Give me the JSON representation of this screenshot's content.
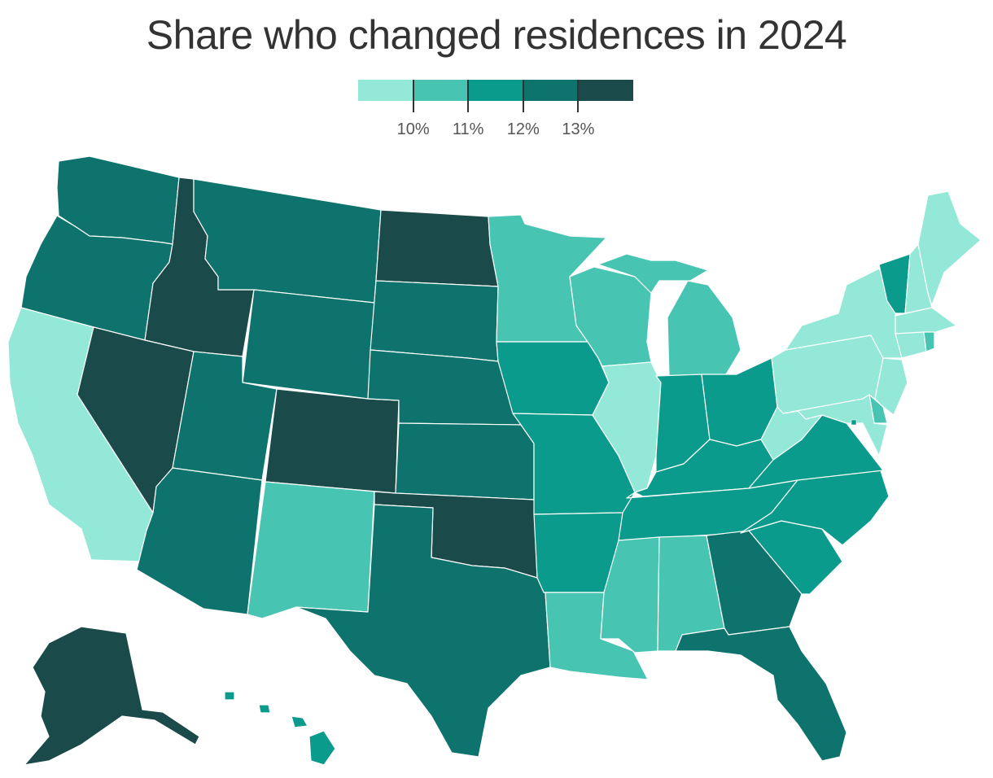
{
  "title": "Share who changed residences in 2024",
  "legend": {
    "bins": [
      {
        "color": "#94e8d8"
      },
      {
        "color": "#48c4b3"
      },
      {
        "color": "#0b9b8c"
      },
      {
        "color": "#0e736d"
      },
      {
        "color": "#1b4a4a"
      }
    ],
    "labels": [
      "10%",
      "11%",
      "12%",
      "13%"
    ]
  },
  "states": [
    {
      "id": "WA",
      "bin": 3
    },
    {
      "id": "OR",
      "bin": 3
    },
    {
      "id": "CA",
      "bin": 0
    },
    {
      "id": "ID",
      "bin": 4
    },
    {
      "id": "NV",
      "bin": 4
    },
    {
      "id": "MT",
      "bin": 3
    },
    {
      "id": "WY",
      "bin": 3
    },
    {
      "id": "UT",
      "bin": 3
    },
    {
      "id": "AZ",
      "bin": 3
    },
    {
      "id": "CO",
      "bin": 4
    },
    {
      "id": "NM",
      "bin": 1
    },
    {
      "id": "ND",
      "bin": 4
    },
    {
      "id": "SD",
      "bin": 3
    },
    {
      "id": "NE",
      "bin": 3
    },
    {
      "id": "KS",
      "bin": 3
    },
    {
      "id": "OK",
      "bin": 4
    },
    {
      "id": "TX",
      "bin": 3
    },
    {
      "id": "MN",
      "bin": 1
    },
    {
      "id": "IA",
      "bin": 2
    },
    {
      "id": "MO",
      "bin": 2
    },
    {
      "id": "AR",
      "bin": 2
    },
    {
      "id": "LA",
      "bin": 1
    },
    {
      "id": "WI",
      "bin": 1
    },
    {
      "id": "IL",
      "bin": 0
    },
    {
      "id": "MI",
      "bin": 1
    },
    {
      "id": "IN",
      "bin": 2
    },
    {
      "id": "OH",
      "bin": 2
    },
    {
      "id": "KY",
      "bin": 2
    },
    {
      "id": "TN",
      "bin": 2
    },
    {
      "id": "MS",
      "bin": 1
    },
    {
      "id": "AL",
      "bin": 1
    },
    {
      "id": "GA",
      "bin": 3
    },
    {
      "id": "FL",
      "bin": 3
    },
    {
      "id": "SC",
      "bin": 2
    },
    {
      "id": "NC",
      "bin": 2
    },
    {
      "id": "VA",
      "bin": 2
    },
    {
      "id": "WV",
      "bin": 0
    },
    {
      "id": "PA",
      "bin": 0
    },
    {
      "id": "NY",
      "bin": 0
    },
    {
      "id": "VT",
      "bin": 2
    },
    {
      "id": "NH",
      "bin": 0
    },
    {
      "id": "ME",
      "bin": 0
    },
    {
      "id": "MA",
      "bin": 0
    },
    {
      "id": "CT",
      "bin": 0
    },
    {
      "id": "RI",
      "bin": 1
    },
    {
      "id": "NJ",
      "bin": 0
    },
    {
      "id": "DE",
      "bin": 1
    },
    {
      "id": "MD",
      "bin": 0
    },
    {
      "id": "DC",
      "bin": 2
    },
    {
      "id": "AK",
      "bin": 4
    },
    {
      "id": "HI",
      "bin": 2
    }
  ]
}
